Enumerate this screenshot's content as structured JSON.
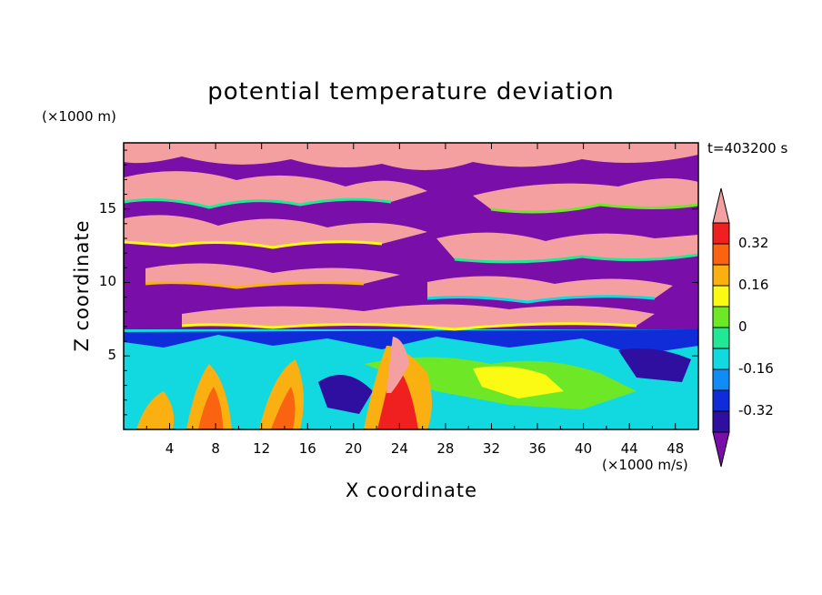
{
  "chart_data": {
    "type": "heatmap",
    "title": "potential temperature deviation",
    "xlabel": "X coordinate",
    "ylabel": "Z coordinate",
    "x_unit_label": "(×1000 m/s)",
    "y_unit_label": "(×1000 m)",
    "time_label": "t=403200 s",
    "xlim": [
      0,
      50
    ],
    "ylim": [
      0,
      19.5
    ],
    "x_ticks": [
      "4",
      "8",
      "12",
      "16",
      "20",
      "24",
      "28",
      "32",
      "36",
      "40",
      "44",
      "48"
    ],
    "y_ticks": [
      "5",
      "10",
      "15"
    ],
    "colorbar": {
      "labels": [
        "0.32",
        "0.16",
        "0",
        "-0.16",
        "-0.32"
      ],
      "levels": [
        -0.4,
        -0.32,
        -0.24,
        -0.16,
        -0.08,
        0,
        0.08,
        0.16,
        0.24,
        0.32,
        0.4
      ],
      "colors": [
        "#7a0ea8",
        "#2f0fa0",
        "#0f2cd8",
        "#0f8cf8",
        "#12d8e0",
        "#22e896",
        "#6ee826",
        "#fafa12",
        "#fab010",
        "#fa6410",
        "#f02020",
        "#f4a0a0"
      ],
      "extend": "both"
    }
  }
}
